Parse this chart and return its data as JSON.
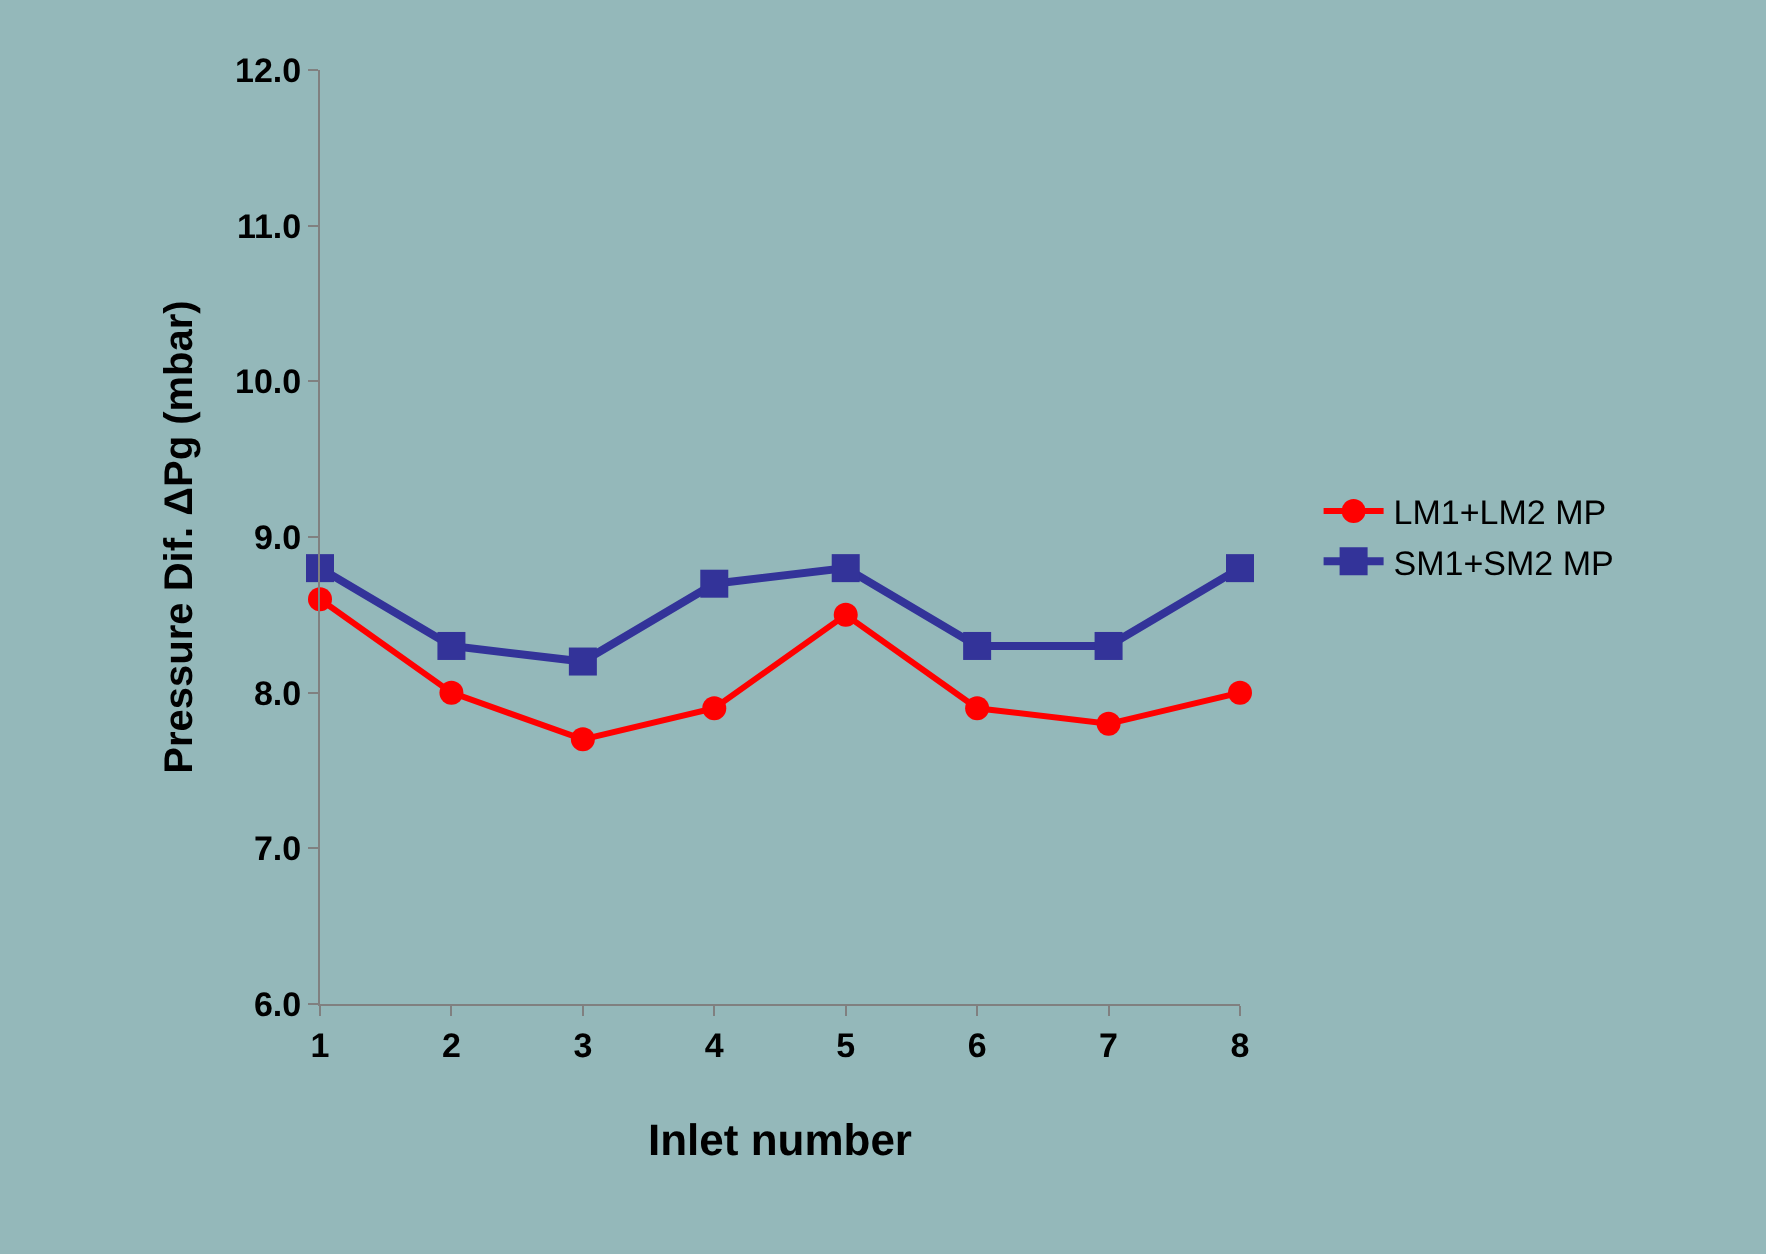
{
  "chart_data": {
    "type": "line",
    "xlabel": "Inlet number",
    "ylabel": "Pressure Dif. ΔPg (mbar)",
    "x": [
      1,
      2,
      3,
      4,
      5,
      6,
      7,
      8
    ],
    "xlim": [
      1,
      8
    ],
    "xticks": [
      1,
      2,
      3,
      4,
      5,
      6,
      7,
      8
    ],
    "ylim": [
      6,
      12
    ],
    "yticks": [
      {
        "value": 6,
        "label": "6.0"
      },
      {
        "value": 7,
        "label": "7.0"
      },
      {
        "value": 8,
        "label": "8.0"
      },
      {
        "value": 9,
        "label": "9.0"
      },
      {
        "value": 10,
        "label": "10.0"
      },
      {
        "value": 11,
        "label": "11.0"
      },
      {
        "value": 12,
        "label": "12.0"
      }
    ],
    "grid": false,
    "legend": "right",
    "series": [
      {
        "name": "LM1+LM2 MP",
        "color": "#ff0000",
        "marker": "circle",
        "values": [
          8.6,
          8.0,
          7.7,
          7.9,
          8.5,
          7.9,
          7.8,
          8.0
        ]
      },
      {
        "name": "SM1+SM2 MP",
        "color": "#333399",
        "marker": "square",
        "values": [
          8.8,
          8.3,
          8.2,
          8.7,
          8.8,
          8.3,
          8.3,
          8.8
        ]
      }
    ]
  }
}
